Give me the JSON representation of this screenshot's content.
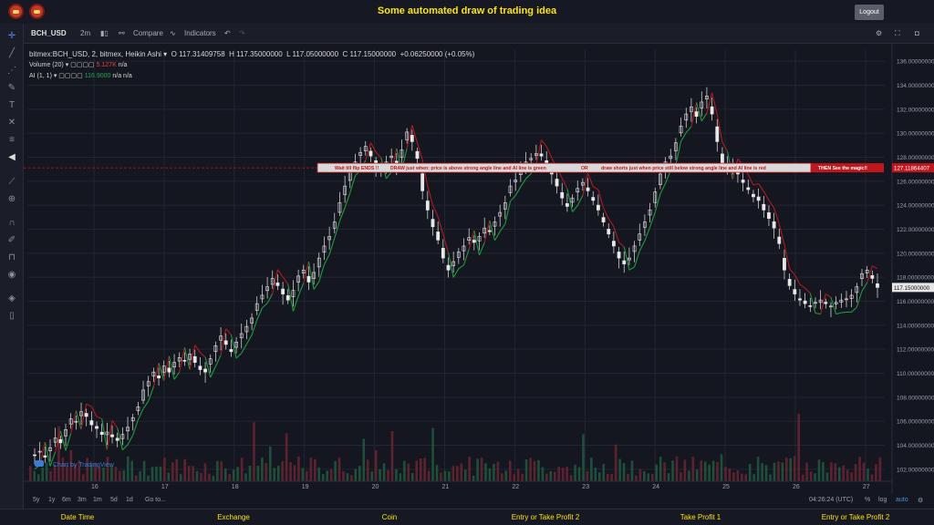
{
  "app": {
    "title": "Some automated draw of trading idea",
    "logout_label": "Logout"
  },
  "toolbar": {
    "symbol": "BCH_USD",
    "interval": "2m",
    "compare_label": "Compare",
    "indicators_label": "Indicators"
  },
  "legend": {
    "main": {
      "title": "bitmex:BCH_USD, 2, bitmex, Heikin Ashi",
      "open": "O 117.31409758",
      "high": "H 117.35000000",
      "low": "L 117.05000000",
      "close": "C 117.15000000",
      "change": "+0.06250000 (+0.05%)"
    },
    "volume": {
      "label": "Volume (20)",
      "value": "5.127K",
      "extra": "n/a"
    },
    "ai": {
      "label": "AI (1, 1)",
      "value": "116.9000",
      "extra1": "n/a",
      "extra2": "n/a"
    }
  },
  "banner": {
    "text1": "Wait till flip ENDS !!",
    "text2": "DRAW just when: price is above strong angle line and AI line is green",
    "text3": "OR",
    "text4": "draw shorts just when price still below strong angle line and AI line is red",
    "text5": "THEN See the magic!!"
  },
  "price_axis": {
    "ticks": [
      "136.00000000",
      "134.00000000",
      "132.00000000",
      "130.00000000",
      "128.00000000",
      "126.00000000",
      "124.00000000",
      "122.00000000",
      "120.00000000",
      "118.00000000",
      "116.00000000",
      "114.00000000",
      "112.00000000",
      "110.00000000",
      "108.00000000",
      "106.00000000",
      "104.00000000",
      "102.00000000"
    ],
    "last_price": "117.15000000",
    "line_price": "127.11864407"
  },
  "time_axis": {
    "ticks": [
      "16",
      "17",
      "18",
      "19",
      "20",
      "21",
      "22",
      "23",
      "24",
      "25",
      "26",
      "27"
    ]
  },
  "watermark": "Chart by TradingView",
  "bottom_bar": {
    "ranges": [
      "5y",
      "1y",
      "6m",
      "3m",
      "1m",
      "5d",
      "1d"
    ],
    "goto": "Go to...",
    "clock": "04:26:24 (UTC)",
    "percent": "%",
    "log": "log",
    "auto": "auto"
  },
  "footer": [
    "Date Time",
    "Exchange",
    "Coin",
    "Entry or Take Profit 2",
    "Take Profit 1",
    "Entry or Take Profit 2"
  ],
  "colors": {
    "accent": "#ffe600",
    "up": "#26a65b",
    "down": "#e04444",
    "candle": "#e8e8e8",
    "ai_green": "#1f9c3a",
    "ai_red": "#b01c1c",
    "banner": "#c0171c"
  },
  "chart_data": {
    "type": "candlestick",
    "title": "",
    "ylim": [
      101,
      137
    ],
    "x_ticks": [
      "16",
      "17",
      "18",
      "19",
      "20",
      "21",
      "22",
      "23",
      "24",
      "25",
      "26",
      "27"
    ],
    "series_close": [
      103.2,
      103.5,
      103.0,
      103.8,
      104.6,
      104.2,
      105.3,
      106.2,
      106.0,
      106.8,
      106.4,
      105.7,
      105.4,
      104.9,
      105.1,
      104.7,
      104.4,
      104.9,
      105.5,
      106.3,
      107.2,
      108.6,
      109.3,
      110.1,
      109.6,
      110.6,
      110.1,
      110.9,
      111.3,
      111.0,
      111.6,
      110.9,
      110.3,
      110.1,
      111.2,
      112.3,
      113.1,
      112.4,
      111.8,
      112.6,
      113.3,
      113.9,
      114.6,
      115.8,
      116.5,
      117.2,
      117.9,
      117.3,
      116.6,
      116.1,
      116.9,
      118.1,
      118.6,
      117.6,
      118.4,
      119.6,
      120.6,
      121.4,
      122.6,
      124.2,
      125.6,
      126.8,
      127.6,
      128.4,
      128.9,
      128.1,
      127.2,
      126.8,
      127.6,
      128.1,
      127.4,
      128.6,
      130.1,
      129.3,
      127.9,
      125.2,
      123.6,
      122.2,
      121.1,
      119.6,
      118.6,
      119.3,
      120.1,
      120.6,
      121.3,
      120.9,
      121.4,
      122.1,
      121.8,
      122.6,
      123.4,
      124.2,
      125.6,
      126.1,
      127.2,
      127.6,
      127.9,
      128.3,
      128.1,
      127.4,
      126.6,
      125.6,
      124.6,
      123.9,
      124.6,
      125.4,
      125.9,
      125.2,
      124.4,
      123.6,
      122.6,
      121.6,
      120.6,
      119.6,
      119.1,
      119.6,
      120.6,
      121.6,
      122.6,
      123.6,
      125.1,
      126.6,
      127.6,
      128.1,
      129.2,
      130.6,
      131.6,
      132.2,
      131.4,
      132.6,
      133.1,
      131.6,
      129.3,
      127.4,
      126.9,
      127.4,
      126.6,
      125.9,
      125.3,
      124.7,
      124.4,
      123.6,
      122.9,
      122.1,
      120.8,
      118.6,
      117.3,
      116.6,
      116.1,
      115.8,
      115.6,
      115.9,
      116.1,
      115.8,
      115.6,
      115.9,
      116.1,
      116.2,
      116.5,
      117.2,
      118.3,
      118.6,
      117.9,
      117.15
    ],
    "ai_line_value": 116.9,
    "horizontal_line": 127.11864407,
    "volume_label": "Volume (20)"
  }
}
